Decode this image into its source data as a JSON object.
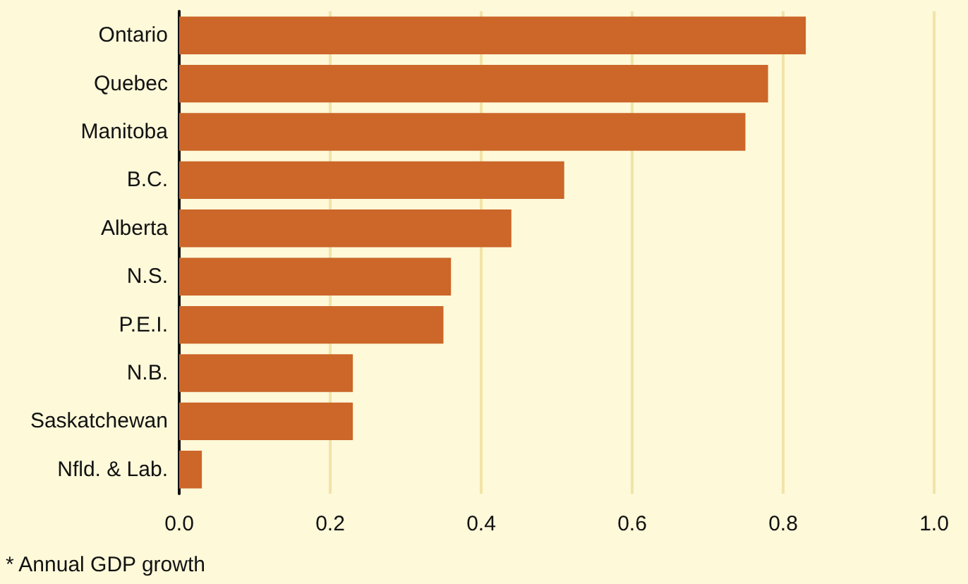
{
  "chart_data": {
    "type": "bar",
    "orientation": "horizontal",
    "categories": [
      "Ontario",
      "Quebec",
      "Manitoba",
      "B.C.",
      "Alberta",
      "N.S.",
      "P.E.I.",
      "N.B.",
      "Saskatchewan",
      "Nfld. & Lab."
    ],
    "values": [
      0.83,
      0.78,
      0.75,
      0.51,
      0.44,
      0.36,
      0.35,
      0.23,
      0.23,
      0.03
    ],
    "color": "#cc6629",
    "xlim": [
      0,
      1
    ],
    "xticks": [
      {
        "value": 0,
        "label": "0.0"
      },
      {
        "value": 0.2,
        "label": "0.2"
      },
      {
        "value": 0.4,
        "label": "0.4"
      },
      {
        "value": 0.6,
        "label": "0.6"
      },
      {
        "value": 0.8,
        "label": "0.8"
      },
      {
        "value": 1,
        "label": "1.0"
      }
    ],
    "grid": "x",
    "annotations": [
      "* Annual GDP growth"
    ]
  }
}
